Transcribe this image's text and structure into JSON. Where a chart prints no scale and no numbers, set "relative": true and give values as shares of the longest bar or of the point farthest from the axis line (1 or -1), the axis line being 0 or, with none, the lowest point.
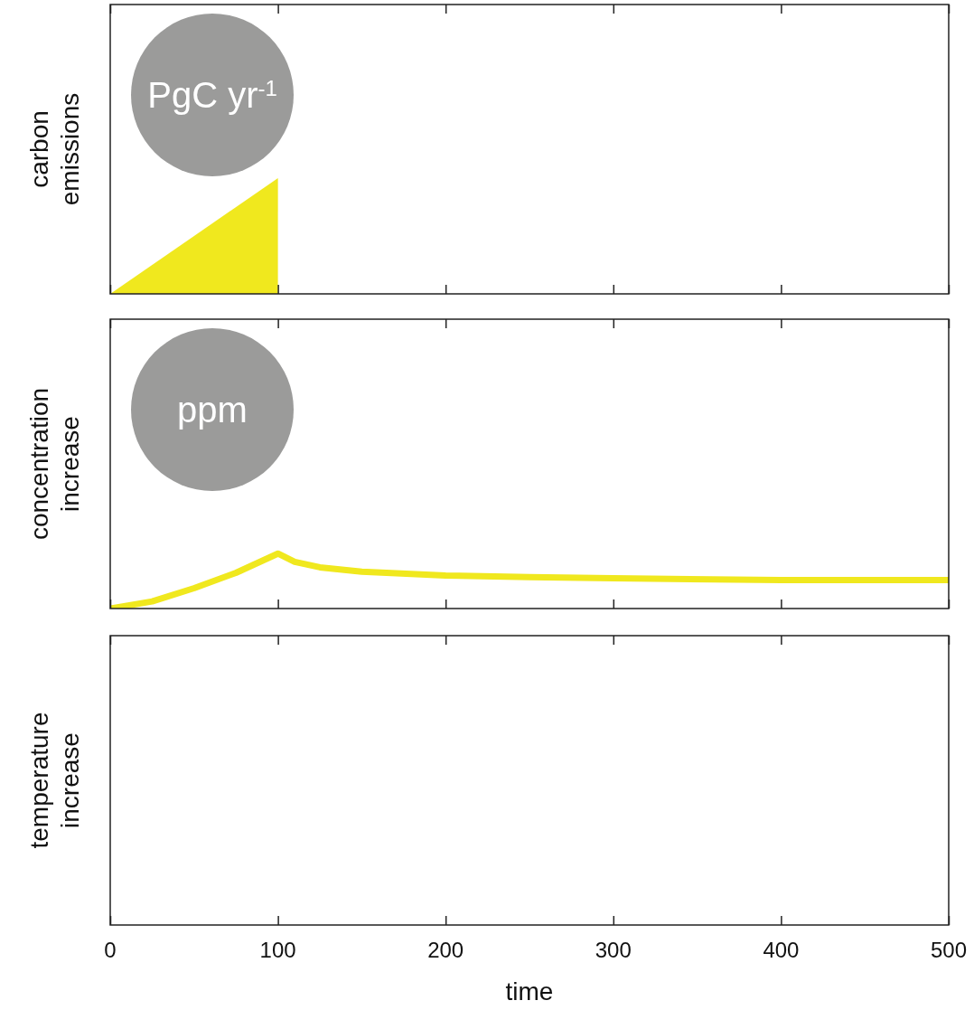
{
  "chart_data": [
    {
      "type": "area",
      "ylabel": "carbon emissions",
      "relative": true,
      "tick_labels": false,
      "xlim": [
        0,
        500
      ],
      "xticks": [
        0,
        100,
        200,
        300,
        400,
        500
      ],
      "annotations": [
        "PgC yr$^{-1}$"
      ],
      "series": [
        {
          "color": "#f0e81e",
          "x": [
            0,
            100,
            100
          ],
          "values": [
            0,
            1,
            0
          ]
        }
      ]
    },
    {
      "type": "line",
      "ylabel": "concentration increase",
      "xlabel": "time",
      "relative": true,
      "tick_labels": "x",
      "xlim": [
        0,
        500
      ],
      "xticks": [
        0,
        100,
        200,
        300,
        400,
        500
      ],
      "annotations": [
        "ppm"
      ],
      "series": [
        {
          "color": "#f0e81e",
          "x": [
            0,
            25,
            50,
            75,
            100,
            110,
            125,
            150,
            200,
            250,
            300,
            400,
            500
          ],
          "values": [
            0,
            0.13,
            0.37,
            0.65,
            1,
            0.85,
            0.75,
            0.67,
            0.6,
            0.57,
            0.55,
            0.52,
            0.52
          ]
        }
      ]
    },
    {
      "type": "other",
      "ylabel": "temperature increase"
    }
  ]
}
